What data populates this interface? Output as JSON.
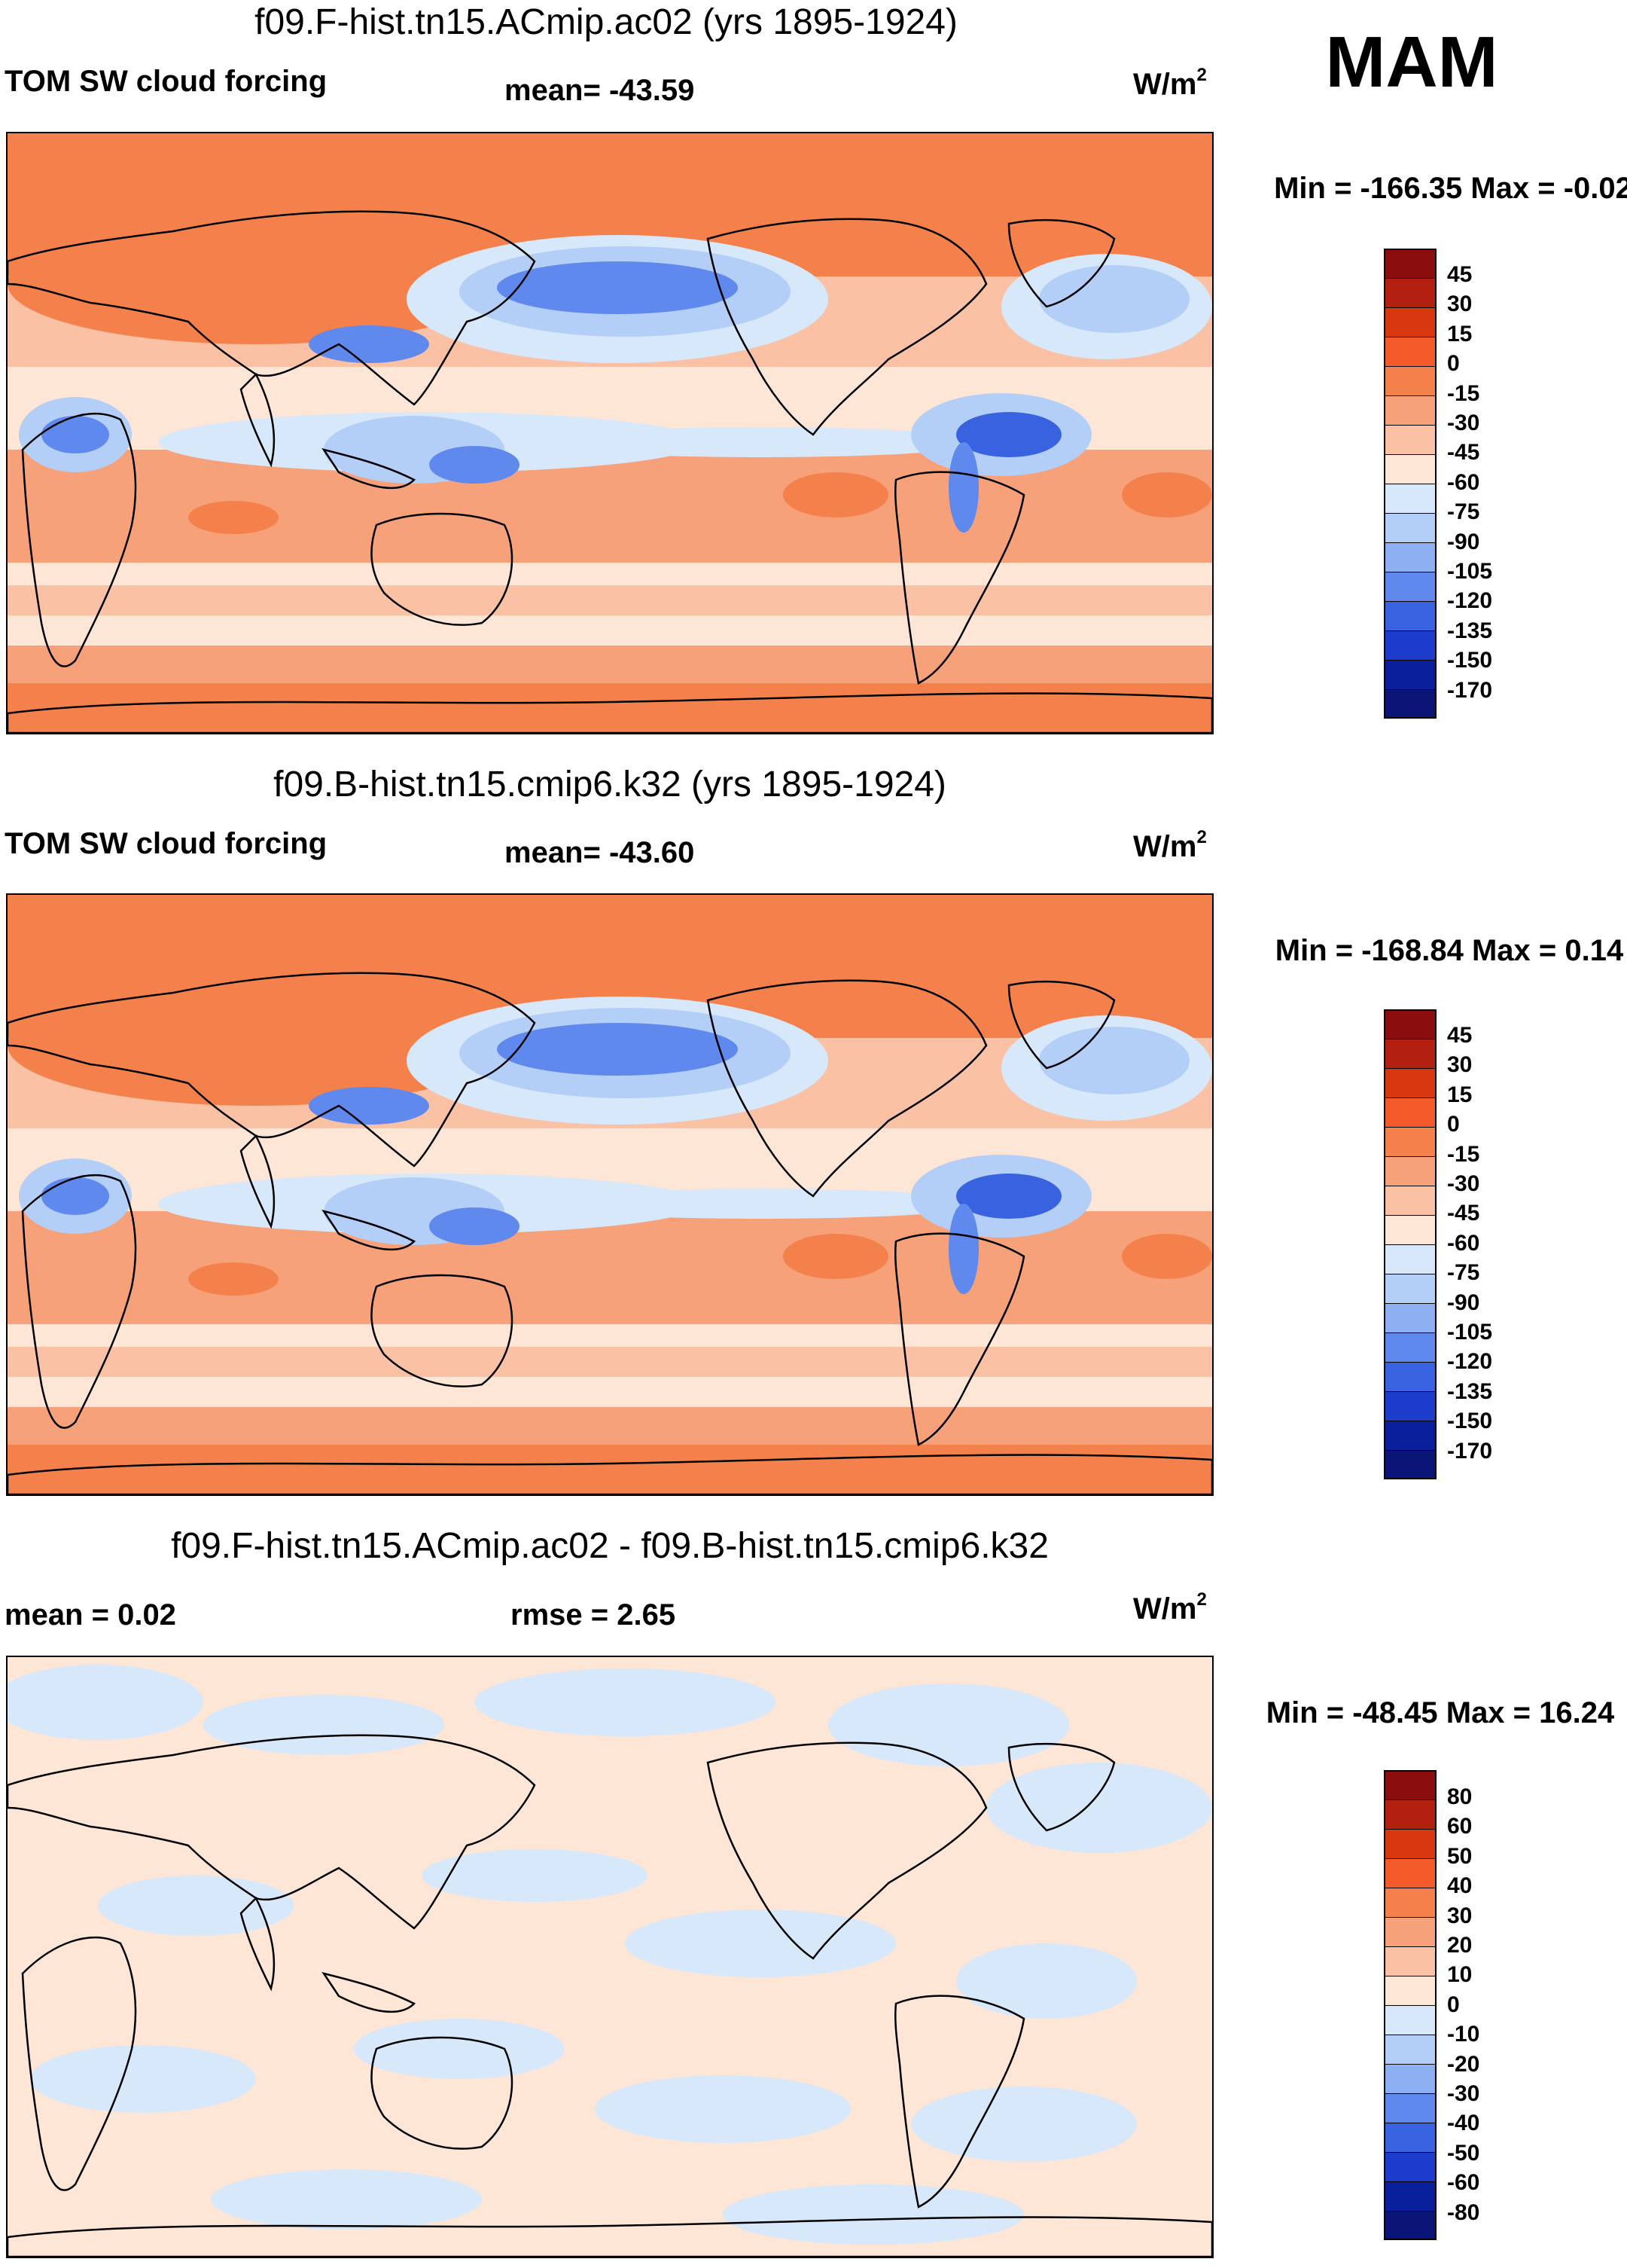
{
  "season": "MAM",
  "panels": [
    {
      "title": "f09.F-hist.tn15.ACmip.ac02 (yrs 1895-1924)",
      "left_label": "TOM SW cloud forcing",
      "center_label": "mean= -43.59",
      "units": "W/m",
      "units_sup": "2",
      "minmax": "Min = -166.35 Max =  -0.02",
      "colorbar_labels": [
        "45",
        "30",
        "15",
        "0",
        "-15",
        "-30",
        "-45",
        "-60",
        "-75",
        "-90",
        "-105",
        "-120",
        "-135",
        "-150",
        "-170"
      ]
    },
    {
      "title": "f09.B-hist.tn15.cmip6.k32 (yrs 1895-1924)",
      "left_label": "TOM SW cloud forcing",
      "center_label": "mean= -43.60",
      "units": "W/m",
      "units_sup": "2",
      "minmax": "Min = -168.84 Max =   0.14",
      "colorbar_labels": [
        "45",
        "30",
        "15",
        "0",
        "-15",
        "-30",
        "-45",
        "-60",
        "-75",
        "-90",
        "-105",
        "-120",
        "-135",
        "-150",
        "-170"
      ]
    },
    {
      "title": "f09.F-hist.tn15.ACmip.ac02 - f09.B-hist.tn15.cmip6.k32",
      "left_label": "mean =   0.02",
      "center_label": "rmse =   2.65",
      "units": "W/m",
      "units_sup": "2",
      "minmax": "Min = -48.45 Max =  16.24",
      "colorbar_labels": [
        "80",
        "60",
        "50",
        "40",
        "30",
        "20",
        "10",
        "0",
        "-10",
        "-20",
        "-30",
        "-40",
        "-50",
        "-60",
        "-80"
      ]
    }
  ],
  "colors": {
    "colorbar": [
      "#8b0d0d",
      "#b3200f",
      "#d9380f",
      "#f55b2a",
      "#f4814c",
      "#f7a17a",
      "#fac1a4",
      "#fde6d5",
      "#d7e8fa",
      "#b3cff7",
      "#8cb0f2",
      "#5f89ec",
      "#3862e0",
      "#1e3ccc",
      "#0a1f9c",
      "#0b1578"
    ],
    "ocean_warm": "#f4814c",
    "band_mid": "#f7a17a",
    "band_light": "#fac1a4",
    "band_pale": "#fde6d5",
    "blue_light": "#d7e8fa",
    "blue_mid": "#b3cff7",
    "blue_deep": "#5f89ec",
    "blue_dark": "#3862e0",
    "diff_pale": "#fde6d5",
    "diff_blue": "#d7e8fa"
  }
}
